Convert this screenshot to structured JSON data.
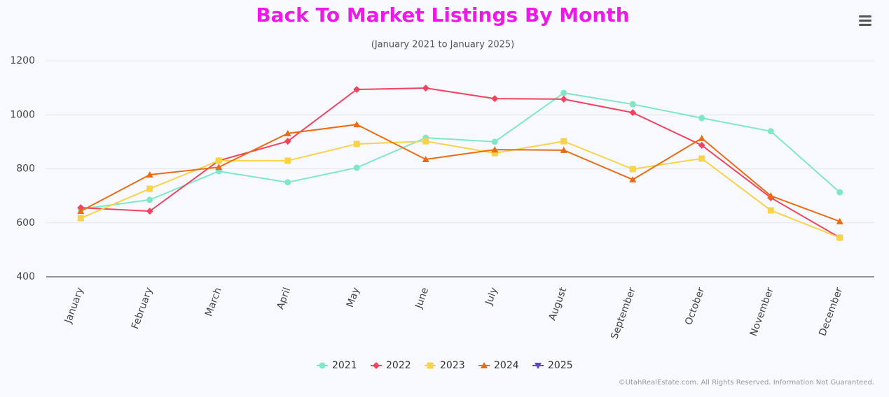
{
  "chart_data": {
    "type": "line",
    "title": "Back To Market Listings By Month",
    "subtitle": "(January 2021 to January 2025)",
    "credit": "©UtahRealEstate.com. All Rights Reserved. Information Not Guaranteed.",
    "categories": [
      "January",
      "February",
      "March",
      "April",
      "May",
      "June",
      "July",
      "August",
      "September",
      "October",
      "November",
      "December"
    ],
    "series": [
      {
        "name": "2021",
        "color": "#7ee8c4",
        "values": [
          651,
          685,
          791,
          750,
          804,
          915,
          900,
          1081,
          1039,
          988,
          939,
          713
        ]
      },
      {
        "name": "2022",
        "color": "#f0435e",
        "values": [
          656,
          643,
          830,
          902,
          1094,
          1099,
          1060,
          1058,
          1008,
          887,
          693,
          545
        ]
      },
      {
        "name": "2023",
        "color": "#f7d34a",
        "values": [
          617,
          726,
          830,
          830,
          892,
          902,
          858,
          902,
          799,
          838,
          646,
          545
        ]
      },
      {
        "name": "2024",
        "color": "#eb6b12",
        "values": [
          643,
          778,
          806,
          931,
          964,
          835,
          871,
          869,
          760,
          913,
          700,
          605
        ]
      },
      {
        "name": "2025",
        "color": "#5a43e0",
        "values": [
          null,
          null,
          null,
          null,
          null,
          null,
          null,
          null,
          null,
          null,
          null,
          null
        ]
      }
    ],
    "ylim": [
      400,
      1200
    ],
    "yticks": [
      400,
      600,
      800,
      1000,
      1200
    ],
    "grid": true
  }
}
